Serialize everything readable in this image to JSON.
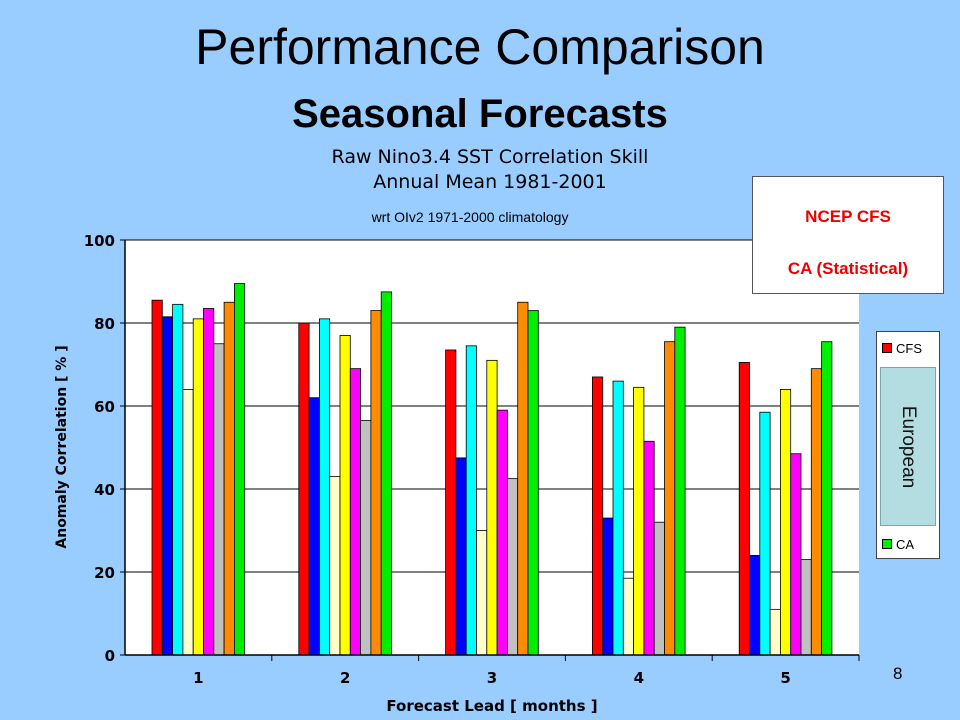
{
  "slide": {
    "title": "Performance Comparison",
    "subtitle": "Seasonal Forecasts",
    "page_number": "8"
  },
  "ncep_box": {
    "line1": "NCEP CFS",
    "line2": "CA (Statistical)",
    "color": "#e00000"
  },
  "legend": {
    "items": [
      {
        "label": "CFS",
        "color": "#ff0000"
      },
      {
        "label": "CA",
        "color": "#00ee00"
      }
    ],
    "overlay_label": "European"
  },
  "chart_data": {
    "type": "bar",
    "title_lines": [
      "Raw Nino3.4 SST Correlation Skill",
      "Annual Mean 1981-2001"
    ],
    "note": "wrt OIv2 1971-2000 climatology",
    "xlabel": "Forecast Lead [ months ]",
    "ylabel": "Anomaly Correlation [ % ]",
    "ylim": [
      0,
      100
    ],
    "yticks": [
      0,
      20,
      40,
      60,
      80,
      100
    ],
    "grid": true,
    "categories": [
      "1",
      "2",
      "3",
      "4",
      "5"
    ],
    "series": [
      {
        "name": "CFS",
        "color": "#ff0000",
        "values": [
          85.5,
          80.0,
          73.5,
          67.0,
          70.5
        ]
      },
      {
        "color": "#0000ff",
        "values": [
          81.5,
          62.0,
          47.5,
          33.0,
          24.0
        ]
      },
      {
        "color": "#00ffff",
        "values": [
          84.5,
          81.0,
          74.5,
          66.0,
          58.5
        ]
      },
      {
        "color": "#ffffcc",
        "values": [
          64.0,
          43.0,
          30.0,
          18.5,
          11.0
        ]
      },
      {
        "color": "#ffff00",
        "values": [
          81.0,
          77.0,
          71.0,
          64.5,
          64.0
        ]
      },
      {
        "color": "#ff00ff",
        "values": [
          83.5,
          69.0,
          59.0,
          51.5,
          48.5
        ]
      },
      {
        "color": "#c0c0c0",
        "values": [
          75.0,
          56.5,
          42.5,
          32.0,
          23.0
        ]
      },
      {
        "color": "#ff8c00",
        "values": [
          85.0,
          83.0,
          85.0,
          75.5,
          69.0
        ]
      },
      {
        "name": "CA",
        "color": "#00ee00",
        "values": [
          89.5,
          87.5,
          83.0,
          79.0,
          75.5
        ]
      }
    ]
  }
}
